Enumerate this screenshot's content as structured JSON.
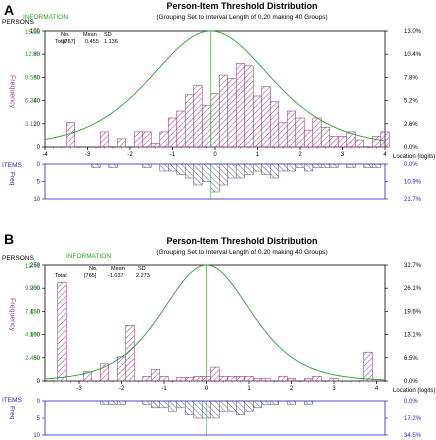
{
  "panels": [
    {
      "label": "A",
      "title": "Person-Item Threshold Distribution",
      "subtitle": "(Grouping Set to Interval Length of  0.20  making  40  Groups)",
      "persons_axis_title": "PERSONS",
      "frequency_label": "Frequency",
      "information_label": "INFORMATION",
      "stats_header": [
        "No.",
        "Mean",
        "SD"
      ],
      "stats_total": [
        "Total",
        "[767]",
        "0.455",
        "1.136"
      ],
      "items_label": "ITEMS",
      "items_freq_label": "Freq",
      "location_label": "Location (logits)",
      "persons_ticks": [
        "0",
        "20",
        "40",
        "60",
        "80",
        "100"
      ],
      "info_ticks": [
        "15.83",
        "12.66",
        "9.50",
        "6.33",
        "3.17"
      ],
      "pct_ticks": [
        "13.0%",
        "10.4%",
        "7.8%",
        "5.2%",
        "2.6%",
        "0.0%"
      ],
      "items_ticks": [
        "0",
        "5",
        "10"
      ],
      "items_pct_ticks": [
        "0.0%",
        "10.9%",
        "21.7%"
      ],
      "x_ticks": [
        "-4",
        "-3",
        "-2",
        "-1",
        "0",
        "1",
        "2",
        "3",
        "4"
      ]
    },
    {
      "label": "B",
      "title": "Person-Item Threshold Distribution",
      "subtitle": "(Grouping Set to Interval Length of 0.20  making  40  Groups)",
      "persons_axis_title": "PERSONS",
      "frequency_label": "Frequency",
      "information_label": "INFORMATION",
      "stats_header": [
        "No.",
        "Mean",
        "SD"
      ],
      "stats_total": [
        "Total",
        "[765]",
        "-1.037",
        "2.273"
      ],
      "items_label": "ITEMS",
      "items_freq_label": "Freq",
      "location_label": "Location (logits)",
      "persons_ticks": [
        "0",
        "50",
        "100",
        "150",
        "200",
        "250"
      ],
      "info_ticks": [
        "12.41",
        "9.93",
        "7.45",
        "4.96",
        "2.48"
      ],
      "pct_ticks": [
        "32.7%",
        "26.1%",
        "19.6%",
        "13.1%",
        "6.5%",
        "0.0%"
      ],
      "items_ticks": [
        "0",
        "5",
        "10"
      ],
      "items_pct_ticks": [
        "0.0%",
        "17.2%",
        "34.5%"
      ],
      "x_ticks": [
        "-3",
        "-2",
        "-1",
        "0",
        "1",
        "2",
        "3",
        "4"
      ]
    }
  ],
  "chart_data": [
    {
      "type": "bar",
      "panel": "A",
      "xlim": [
        -4,
        4
      ],
      "ylim": [
        0,
        100
      ],
      "bin_width": 0.2,
      "bar_color": "#9b3f8a",
      "info_curve_color": "#2ca02c",
      "persons": {
        "x": [
          -3.4,
          -2.6,
          -2.2,
          -1.8,
          -1.6,
          -1.4,
          -1.2,
          -1.0,
          -0.8,
          -0.6,
          -0.4,
          -0.2,
          0.0,
          0.2,
          0.4,
          0.6,
          0.8,
          1.0,
          1.2,
          1.4,
          1.6,
          1.8,
          2.0,
          2.2,
          2.4,
          2.6,
          2.8,
          3.0,
          3.2,
          3.4,
          3.8,
          4.0
        ],
        "values": [
          21,
          13,
          7,
          13,
          13,
          3,
          13,
          25,
          31,
          45,
          53,
          36,
          46,
          62,
          59,
          72,
          70,
          44,
          52,
          39,
          21,
          31,
          25,
          14,
          25,
          17,
          9,
          9,
          13,
          6,
          9,
          13
        ]
      },
      "information_peak": {
        "x": -0.1,
        "y": 15.83
      },
      "items_ylim": [
        0,
        10
      ],
      "items": {
        "x": [
          -2.8,
          -2.4,
          -1.6,
          -1.2,
          -1.0,
          -0.8,
          -0.6,
          -0.4,
          -0.2,
          0.0,
          0.2,
          0.4,
          0.6,
          0.8,
          1.0,
          1.2,
          1.4,
          1.6,
          1.8,
          2.0,
          2.2,
          2.4,
          2.6,
          2.8,
          3.2,
          3.6,
          3.8
        ],
        "values": [
          1,
          1,
          1,
          2,
          2,
          3,
          4,
          6,
          5,
          8,
          6,
          4,
          4,
          3,
          2,
          3,
          4,
          2,
          2,
          1,
          2,
          1,
          1,
          1,
          1,
          1,
          1
        ]
      }
    },
    {
      "type": "bar",
      "panel": "B",
      "xlim": [
        -3.8,
        4.2
      ],
      "ylim": [
        0,
        250
      ],
      "bin_width": 0.2,
      "bar_color": "#9b3f8a",
      "info_curve_color": "#2ca02c",
      "persons": {
        "x": [
          -3.4,
          -2.8,
          -2.4,
          -2.0,
          -1.8,
          -1.4,
          -1.2,
          -1.0,
          -0.6,
          -0.4,
          -0.2,
          0.0,
          0.2,
          0.4,
          0.6,
          0.8,
          1.0,
          1.2,
          1.4,
          1.8,
          2.0,
          2.4,
          2.6,
          3.0,
          3.8
        ],
        "values": [
          212,
          20,
          37,
          52,
          120,
          10,
          25,
          10,
          8,
          8,
          10,
          10,
          30,
          10,
          10,
          10,
          10,
          5,
          5,
          10,
          5,
          5,
          10,
          5,
          62
        ]
      },
      "information_peak": {
        "x": 0.0,
        "y": 12.41
      },
      "items_ylim": [
        0,
        10
      ],
      "items": {
        "x": [
          -2.4,
          -2.2,
          -2.0,
          -1.4,
          -1.2,
          -1.0,
          -0.8,
          -0.6,
          -0.4,
          -0.2,
          0.0,
          0.2,
          0.4,
          0.6,
          0.8,
          1.0,
          1.2,
          1.4,
          1.6,
          2.0,
          2.4
        ],
        "values": [
          1,
          1,
          1,
          1,
          2,
          2,
          3,
          2,
          4,
          5,
          5,
          5,
          3,
          3,
          4,
          3,
          2,
          1,
          1,
          1,
          1
        ]
      }
    }
  ]
}
